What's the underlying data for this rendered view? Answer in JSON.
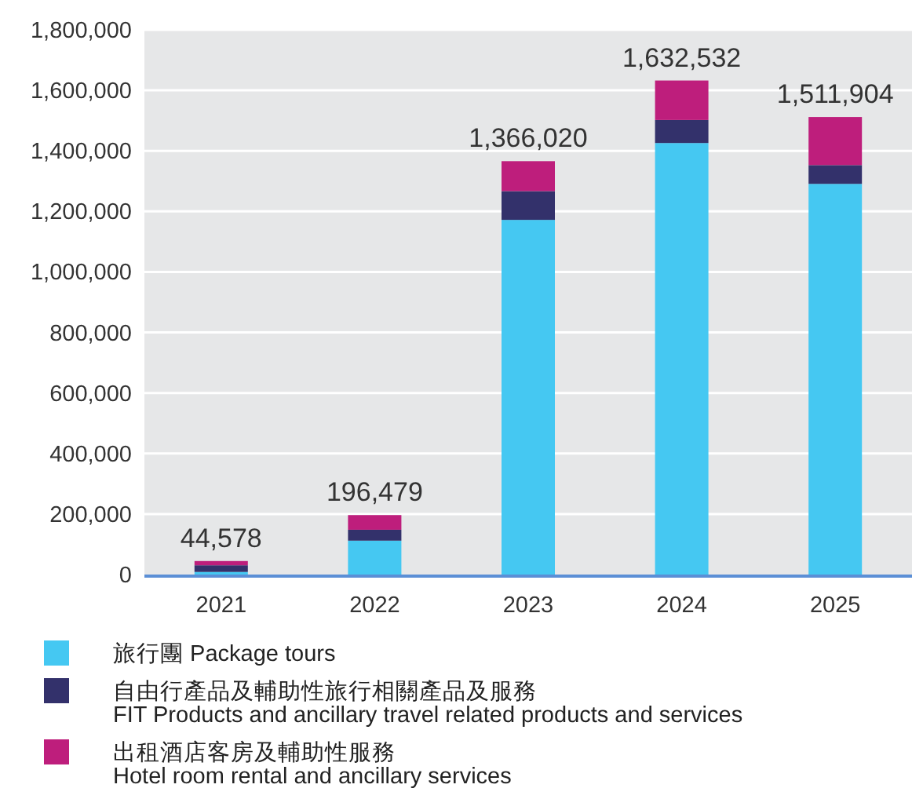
{
  "chart_data": {
    "type": "bar",
    "stacked": true,
    "categories": [
      "2021",
      "2022",
      "2023",
      "2024",
      "2025"
    ],
    "series": [
      {
        "name": "旅行團 Package tours",
        "color": "#45c8f2",
        "values": [
          8578,
          112000,
          1172000,
          1426000,
          1291000
        ]
      },
      {
        "name": "自由行產品及輔助性旅行相關產品及服務\nFIT Products and ancillary travel related products and services",
        "color": "#33316b",
        "values": [
          22000,
          36000,
          95000,
          76000,
          62000
        ]
      },
      {
        "name": "出租酒店客房及輔助性服務\nHotel room rental and ancillary services",
        "color": "#be1e7c",
        "values": [
          14000,
          48479,
          99020,
          130532,
          158904
        ]
      }
    ],
    "totals": [
      "44,578",
      "196,479",
      "1,366,020",
      "1,632,532",
      "1,511,904"
    ],
    "ylim": [
      0,
      1800000
    ],
    "yticks": [
      0,
      {
        "value": 200000,
        "label": "200,000"
      },
      {
        "value": 400000,
        "label": "400,000"
      },
      {
        "value": 600000,
        "label": "600,000"
      },
      {
        "value": 800000,
        "label": "800,000"
      },
      {
        "value": 1000000,
        "label": "1,000,000"
      },
      {
        "value": 1200000,
        "label": "1,200,000"
      },
      {
        "value": 1400000,
        "label": "1,400,000"
      },
      {
        "value": 1600000,
        "label": "1,600,000"
      },
      {
        "value": 1800000,
        "label": "1,800,000"
      }
    ],
    "grid": "y",
    "legend": "bottom"
  }
}
